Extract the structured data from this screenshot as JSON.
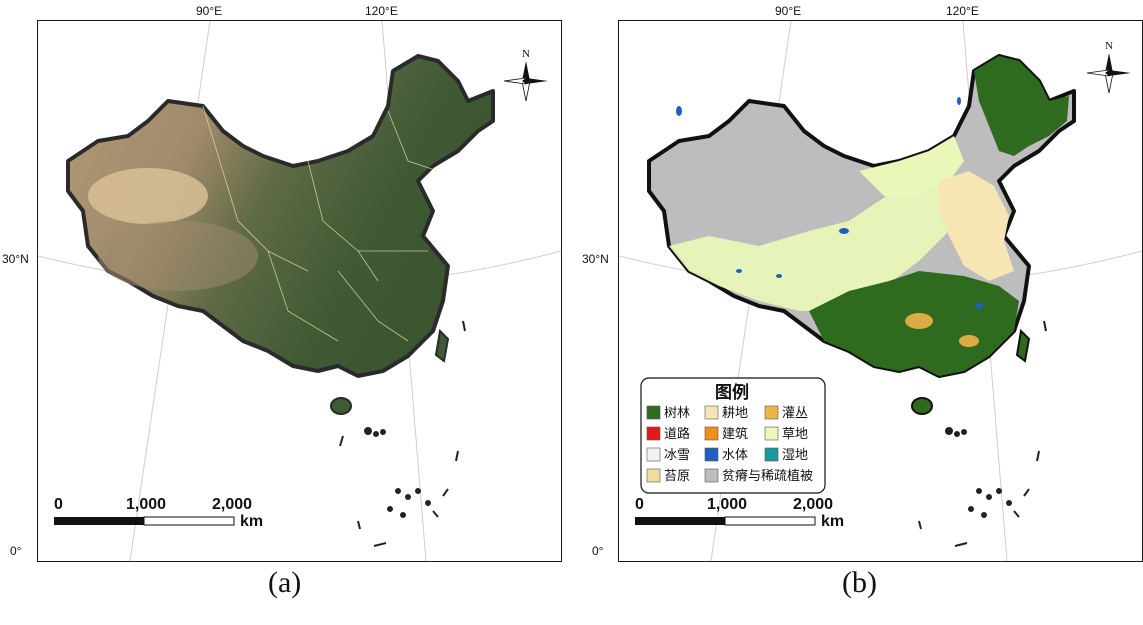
{
  "ticks": {
    "lon1": "90°E",
    "lon2": "120°E",
    "lat1": "30°N",
    "lat2": "0°"
  },
  "panels": [
    {
      "caption": "(a)"
    },
    {
      "caption": "(b)"
    }
  ],
  "compass": {
    "label": "N"
  },
  "scale_bar": {
    "labels": [
      "0",
      "1,000",
      "2,000"
    ],
    "unit": "km"
  },
  "legend": {
    "title": "图例",
    "items": [
      {
        "label": "树林",
        "color": "#2e6b1e"
      },
      {
        "label": "耕地",
        "color": "#f6e6b3"
      },
      {
        "label": "灌丛",
        "color": "#f0b24a"
      },
      {
        "label": "道路",
        "color": "#e31a1c"
      },
      {
        "label": "建筑",
        "color": "#f28e1c"
      },
      {
        "label": "草地",
        "color": "#e9f7b8"
      },
      {
        "label": "冰雪",
        "color": "#f2f2f2"
      },
      {
        "label": "水体",
        "color": "#1f5fbf"
      },
      {
        "label": "湿地",
        "color": "#1a9aa0"
      },
      {
        "label": "苔原",
        "color": "#f3dca0"
      },
      {
        "label": "贫瘠与稀疏植被",
        "color": "#bdbdbd"
      }
    ]
  }
}
